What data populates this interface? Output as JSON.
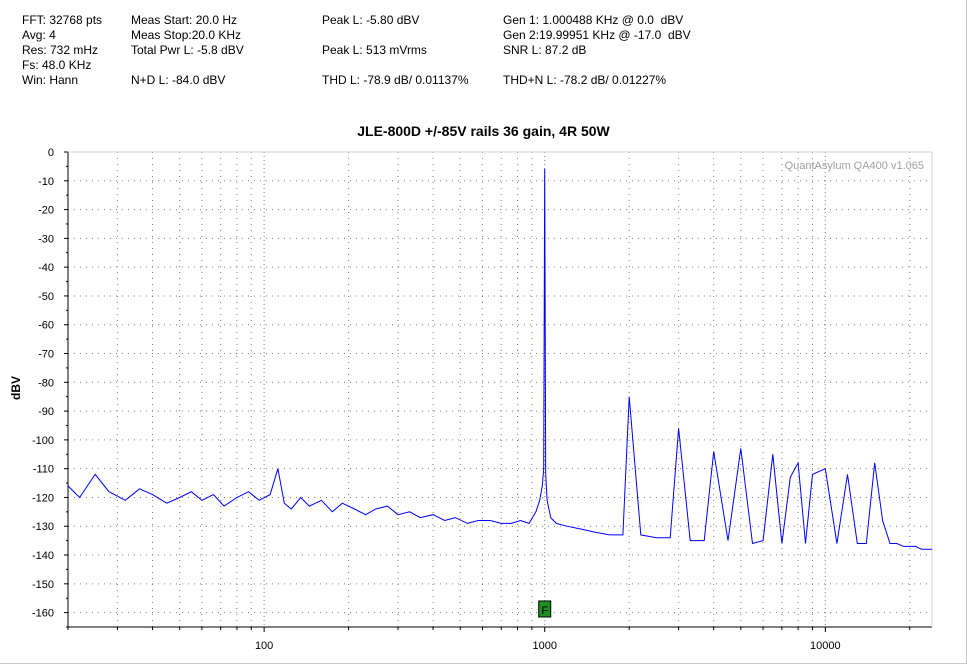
{
  "header": {
    "fft": "FFT: 32768 pts",
    "avg": "Avg: 4",
    "res": "Res: 732 mHz",
    "fs": "Fs: 48.0 KHz",
    "win": "Win: Hann",
    "meas_start": "Meas Start: 20.0 Hz",
    "meas_stop": "Meas Stop:20.0 KHz",
    "total_pwr": "Total Pwr L: -5.8 dBV",
    "nd": "N+D L: -84.0 dBV",
    "peak_l_dbv": "Peak L: -5.80 dBV",
    "peak_l_vrms": "Peak L: 513 mVrms",
    "thd": "THD L: -78.9 dB/ 0.01137%",
    "gen1": "Gen 1: 1.000488 KHz @ 0.0  dBV",
    "gen2": "Gen 2:19.99951 KHz @ -17.0  dBV",
    "snr": "SNR L: 87.2 dB",
    "thdn": "THD+N L: -78.2 dB/ 0.01227%"
  },
  "watermark": "QuantAsylum QA400 v1.065",
  "marker_label": "F",
  "colors": {
    "trace": "#0000ff",
    "marker_fill": "#1f8f1f",
    "grid": "#808080"
  },
  "chart_data": {
    "type": "line",
    "title": "JLE-800D +/-85V rails 36 gain, 4R 50W",
    "xlabel": "",
    "ylabel": "dBV",
    "x_scale": "log",
    "xlim": [
      20,
      24000
    ],
    "ylim": [
      -165,
      0
    ],
    "x_ticks": [
      100,
      1000,
      10000
    ],
    "x_tick_labels": [
      "100",
      "1000",
      "10000"
    ],
    "y_ticks": [
      0,
      -10,
      -20,
      -30,
      -40,
      -50,
      -60,
      -70,
      -80,
      -90,
      -100,
      -110,
      -120,
      -130,
      -140,
      -150,
      -160
    ],
    "grid": true,
    "marker": {
      "label": "F",
      "x": 1000
    },
    "series": [
      {
        "x": [
          20,
          22,
          25,
          28,
          32,
          36,
          40,
          45,
          50,
          55,
          60,
          66,
          72,
          80,
          88,
          96,
          105,
          112,
          118,
          125,
          135,
          145,
          160,
          175,
          190,
          210,
          230,
          250,
          275,
          300,
          330,
          360,
          400,
          440,
          480,
          530,
          580,
          640,
          700,
          760,
          820,
          880,
          930,
          960,
          980,
          992,
          1000,
          1008,
          1020,
          1050,
          1100,
          1200,
          1350,
          1500,
          1700,
          1900,
          2000,
          2200,
          2500,
          2800,
          3000,
          3300,
          3700,
          4000,
          4500,
          5000,
          5500,
          6000,
          6500,
          7000,
          7500,
          8000,
          8500,
          9000,
          10000,
          11000,
          12000,
          13000,
          14000,
          15000,
          16000,
          17000,
          18000,
          19000,
          20000,
          21000,
          22000,
          24000
        ],
        "y": [
          -116,
          -120,
          -112,
          -118,
          -121,
          -117,
          -119,
          -122,
          -120,
          -118,
          -121,
          -119,
          -123,
          -120,
          -118,
          -121,
          -119,
          -110,
          -122,
          -124,
          -120,
          -123,
          -121,
          -125,
          -122,
          -124,
          -126,
          -124,
          -123,
          -126,
          -125,
          -127,
          -126,
          -128,
          -127,
          -129,
          -128,
          -128,
          -129,
          -129,
          -128,
          -129,
          -125,
          -121,
          -116,
          -110,
          -5.8,
          -112,
          -121,
          -127,
          -129,
          -130,
          -131,
          -132,
          -133,
          -133,
          -85,
          -133,
          -134,
          -134,
          -96,
          -135,
          -135,
          -104,
          -135,
          -103,
          -136,
          -135,
          -105,
          -136,
          -113,
          -108,
          -136,
          -112,
          -110,
          -136,
          -112,
          -136,
          -136,
          -108,
          -128,
          -136,
          -136,
          -137,
          -137,
          -137,
          -138,
          -138
        ]
      }
    ]
  }
}
